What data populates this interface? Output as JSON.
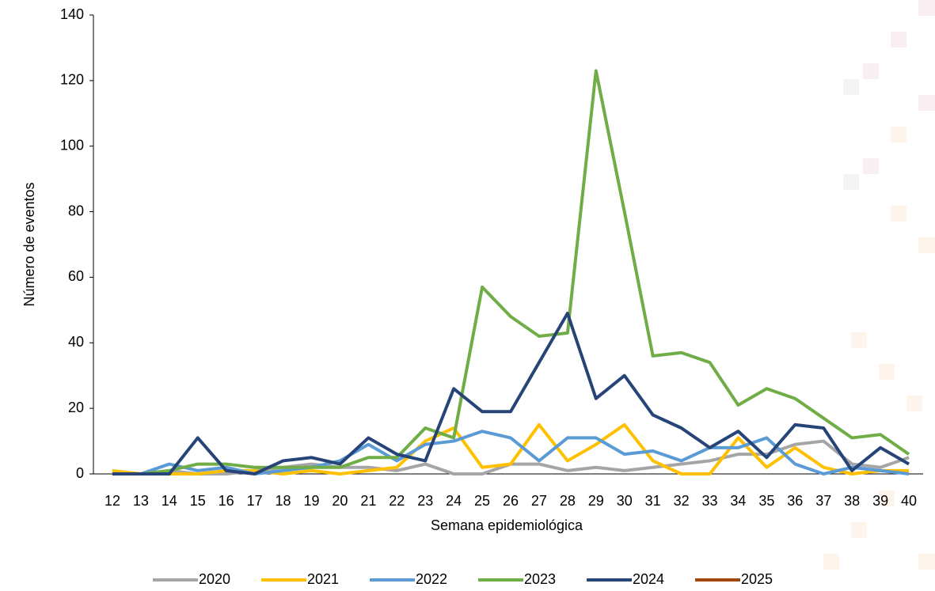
{
  "chart_data": {
    "type": "line",
    "x_label": "Semana epidemiológica",
    "y_label": "Número de eventos",
    "categories": [
      "12",
      "13",
      "14",
      "15",
      "16",
      "17",
      "18",
      "19",
      "20",
      "21",
      "22",
      "23",
      "24",
      "25",
      "26",
      "27",
      "28",
      "29",
      "30",
      "31",
      "32",
      "33",
      "34",
      "35",
      "36",
      "37",
      "38",
      "39",
      "40"
    ],
    "ylim": [
      0,
      140
    ],
    "yticks": [
      0,
      20,
      40,
      60,
      80,
      100,
      120,
      140
    ],
    "legend": "bottom",
    "series": [
      {
        "name": "2020",
        "color": "#a5a5a5",
        "values": [
          0,
          0,
          1,
          0,
          0,
          1,
          2,
          3,
          2,
          2,
          1,
          3,
          0,
          0,
          3,
          3,
          1,
          2,
          1,
          2,
          3,
          4,
          6,
          6,
          9,
          10,
          3,
          2,
          5
        ]
      },
      {
        "name": "2021",
        "color": "#ffc000",
        "values": [
          1,
          0,
          0,
          0,
          1,
          1,
          0,
          1,
          0,
          1,
          2,
          10,
          14,
          2,
          3,
          15,
          4,
          9,
          15,
          4,
          0,
          0,
          11,
          2,
          8,
          2,
          0,
          1,
          1
        ]
      },
      {
        "name": "2022",
        "color": "#5b9bd5",
        "values": [
          0,
          0,
          3,
          1,
          2,
          0,
          1,
          2,
          4,
          9,
          4,
          9,
          10,
          13,
          11,
          4,
          11,
          11,
          6,
          7,
          4,
          8,
          8,
          11,
          3,
          0,
          2,
          1,
          0
        ]
      },
      {
        "name": "2023",
        "color": "#70ad47",
        "values": [
          0,
          0,
          1,
          3,
          3,
          2,
          2,
          2,
          2,
          5,
          5,
          14,
          11,
          57,
          48,
          42,
          43,
          123,
          80,
          36,
          37,
          34,
          21,
          26,
          23,
          17,
          11,
          12,
          6
        ]
      },
      {
        "name": "2024",
        "color": "#264478",
        "values": [
          0,
          0,
          0,
          11,
          1,
          0,
          4,
          5,
          3,
          11,
          6,
          4,
          26,
          19,
          19,
          34,
          49,
          23,
          30,
          18,
          14,
          8,
          13,
          5,
          15,
          14,
          1,
          8,
          3
        ]
      },
      {
        "name": "2025",
        "color": "#9e480e",
        "values": [
          null,
          null,
          null,
          null,
          null,
          null,
          null,
          null,
          null,
          null,
          null,
          null,
          null,
          null,
          null,
          null,
          null,
          null,
          null,
          null,
          null,
          null,
          null,
          null,
          null,
          null,
          null,
          null,
          null
        ]
      }
    ]
  }
}
